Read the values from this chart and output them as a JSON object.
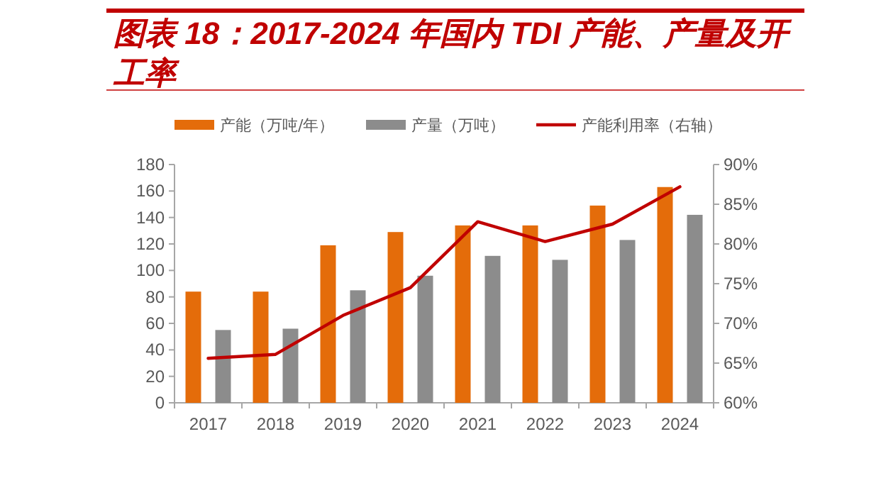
{
  "chart_data": {
    "type": "bar",
    "title": "图表 18：2017-2024 年国内 TDI 产能、产量及开工率",
    "categories": [
      "2017",
      "2018",
      "2019",
      "2020",
      "2021",
      "2022",
      "2023",
      "2024"
    ],
    "series": [
      {
        "name": "产能（万吨/年）",
        "color": "#e46c0a",
        "values": [
          84,
          84,
          119,
          129,
          134,
          134,
          149,
          163
        ]
      },
      {
        "name": "产量（万吨）",
        "color": "#8c8c8c",
        "values": [
          55,
          56,
          85,
          96,
          111,
          108,
          123,
          142
        ]
      },
      {
        "name": "产能利用率（右轴）",
        "type": "line",
        "axis": "y2",
        "color": "#c00000",
        "marker": "none",
        "values": [
          65.6,
          66.1,
          71.0,
          74.5,
          82.8,
          80.3,
          82.5,
          87.2
        ]
      }
    ],
    "ylim": [
      0,
      180
    ],
    "yticks": [
      0,
      20,
      40,
      60,
      80,
      100,
      120,
      140,
      160,
      180
    ],
    "y2lim": [
      60,
      90
    ],
    "y2ticks": [
      {
        "value": 60,
        "label": "60%"
      },
      {
        "value": 65,
        "label": "65%"
      },
      {
        "value": 70,
        "label": "70%"
      },
      {
        "value": 75,
        "label": "75%"
      },
      {
        "value": 80,
        "label": "80%"
      },
      {
        "value": 85,
        "label": "85%"
      },
      {
        "value": 90,
        "label": "90%"
      }
    ],
    "legend": "top",
    "grid": false
  }
}
